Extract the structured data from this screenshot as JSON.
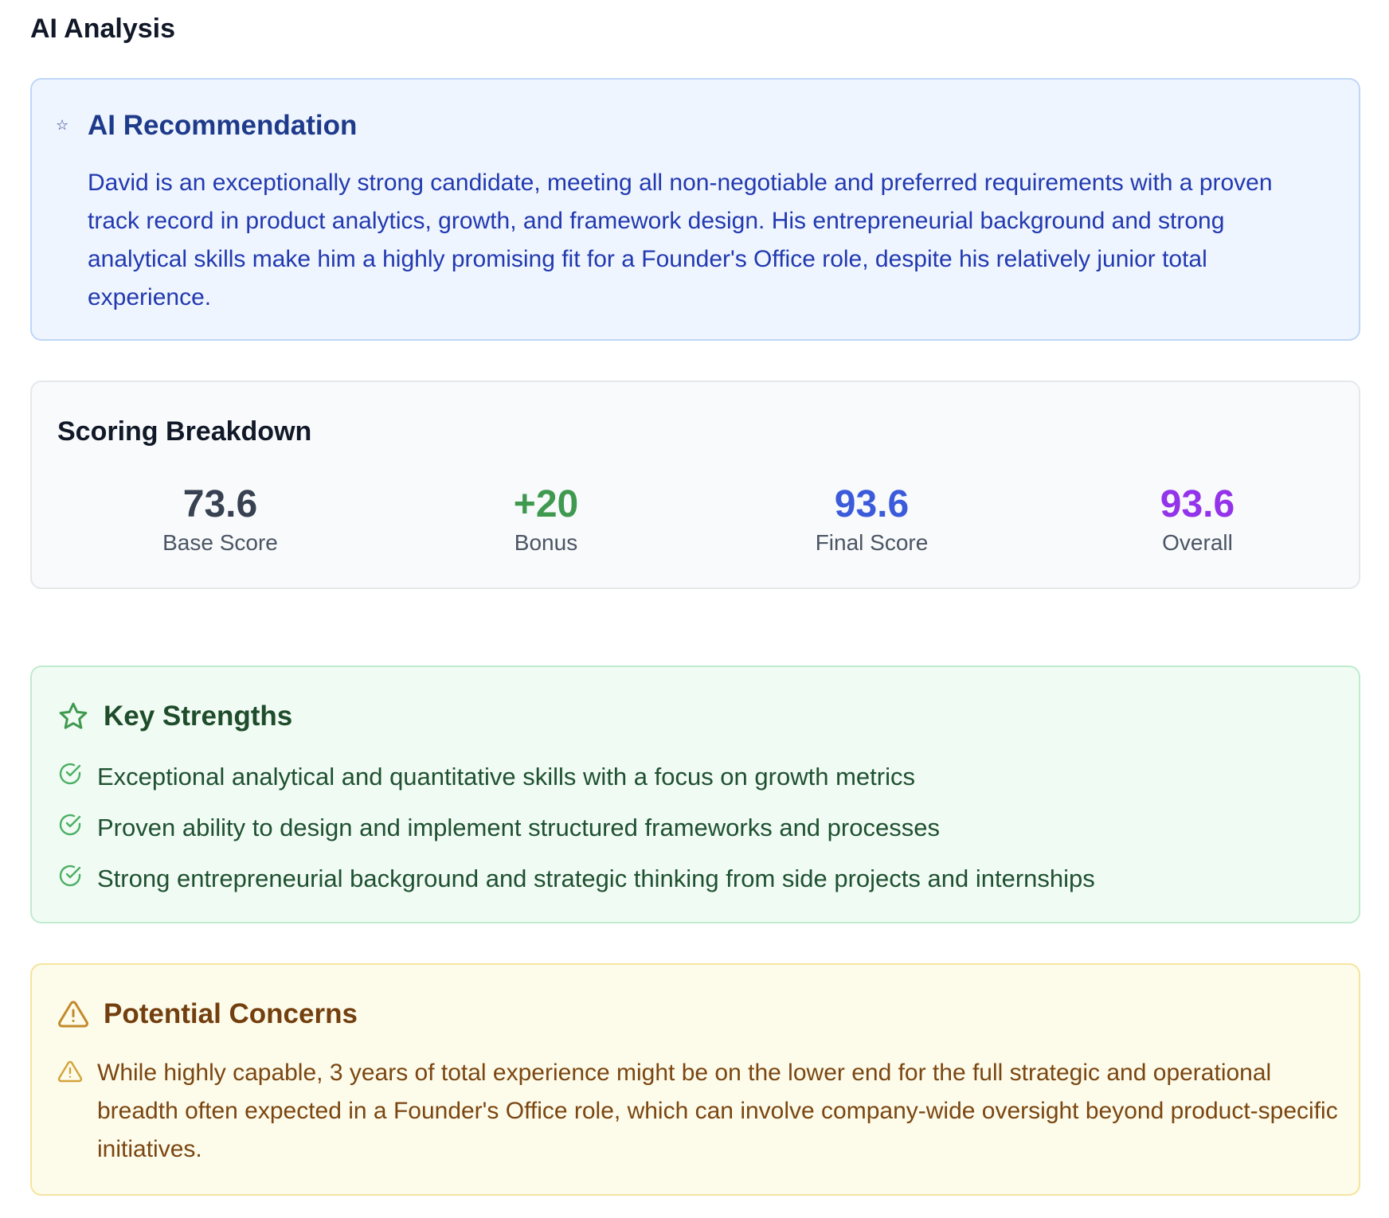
{
  "page": {
    "title": "AI Analysis"
  },
  "recommendation": {
    "icon": "star-icon",
    "title": "AI Recommendation",
    "text": "David is an exceptionally strong candidate, meeting all non-negotiable and preferred requirements with a proven track record in product analytics, growth, and framework design. His entrepreneurial background and strong analytical skills make him a highly promising fit for a Founder's Office role, despite his relatively junior total experience."
  },
  "scoring": {
    "title": "Scoring Breakdown",
    "items": [
      {
        "value": "73.6",
        "label": "Base Score",
        "color": "#374151"
      },
      {
        "value": "+20",
        "label": "Bonus",
        "color": "#3f9a4f"
      },
      {
        "value": "93.6",
        "label": "Final Score",
        "color": "#3b5bdb"
      },
      {
        "value": "93.6",
        "label": "Overall",
        "color": "#9333ea"
      }
    ]
  },
  "strengths": {
    "icon": "star-outline-icon",
    "title": "Key Strengths",
    "item_icon": "check-circle-icon",
    "items": [
      "Exceptional analytical and quantitative skills with a focus on growth metrics",
      "Proven ability to design and implement structured frameworks and processes",
      "Strong entrepreneurial background and strategic thinking from side projects and internships"
    ]
  },
  "concerns": {
    "icon": "warning-triangle-icon",
    "title": "Potential Concerns",
    "items": [
      "While highly capable, 3 years of total experience might be on the lower end for the full strategic and operational breadth often expected in a Founder's Office role, which can involve company-wide oversight beyond product-specific initiatives."
    ]
  }
}
